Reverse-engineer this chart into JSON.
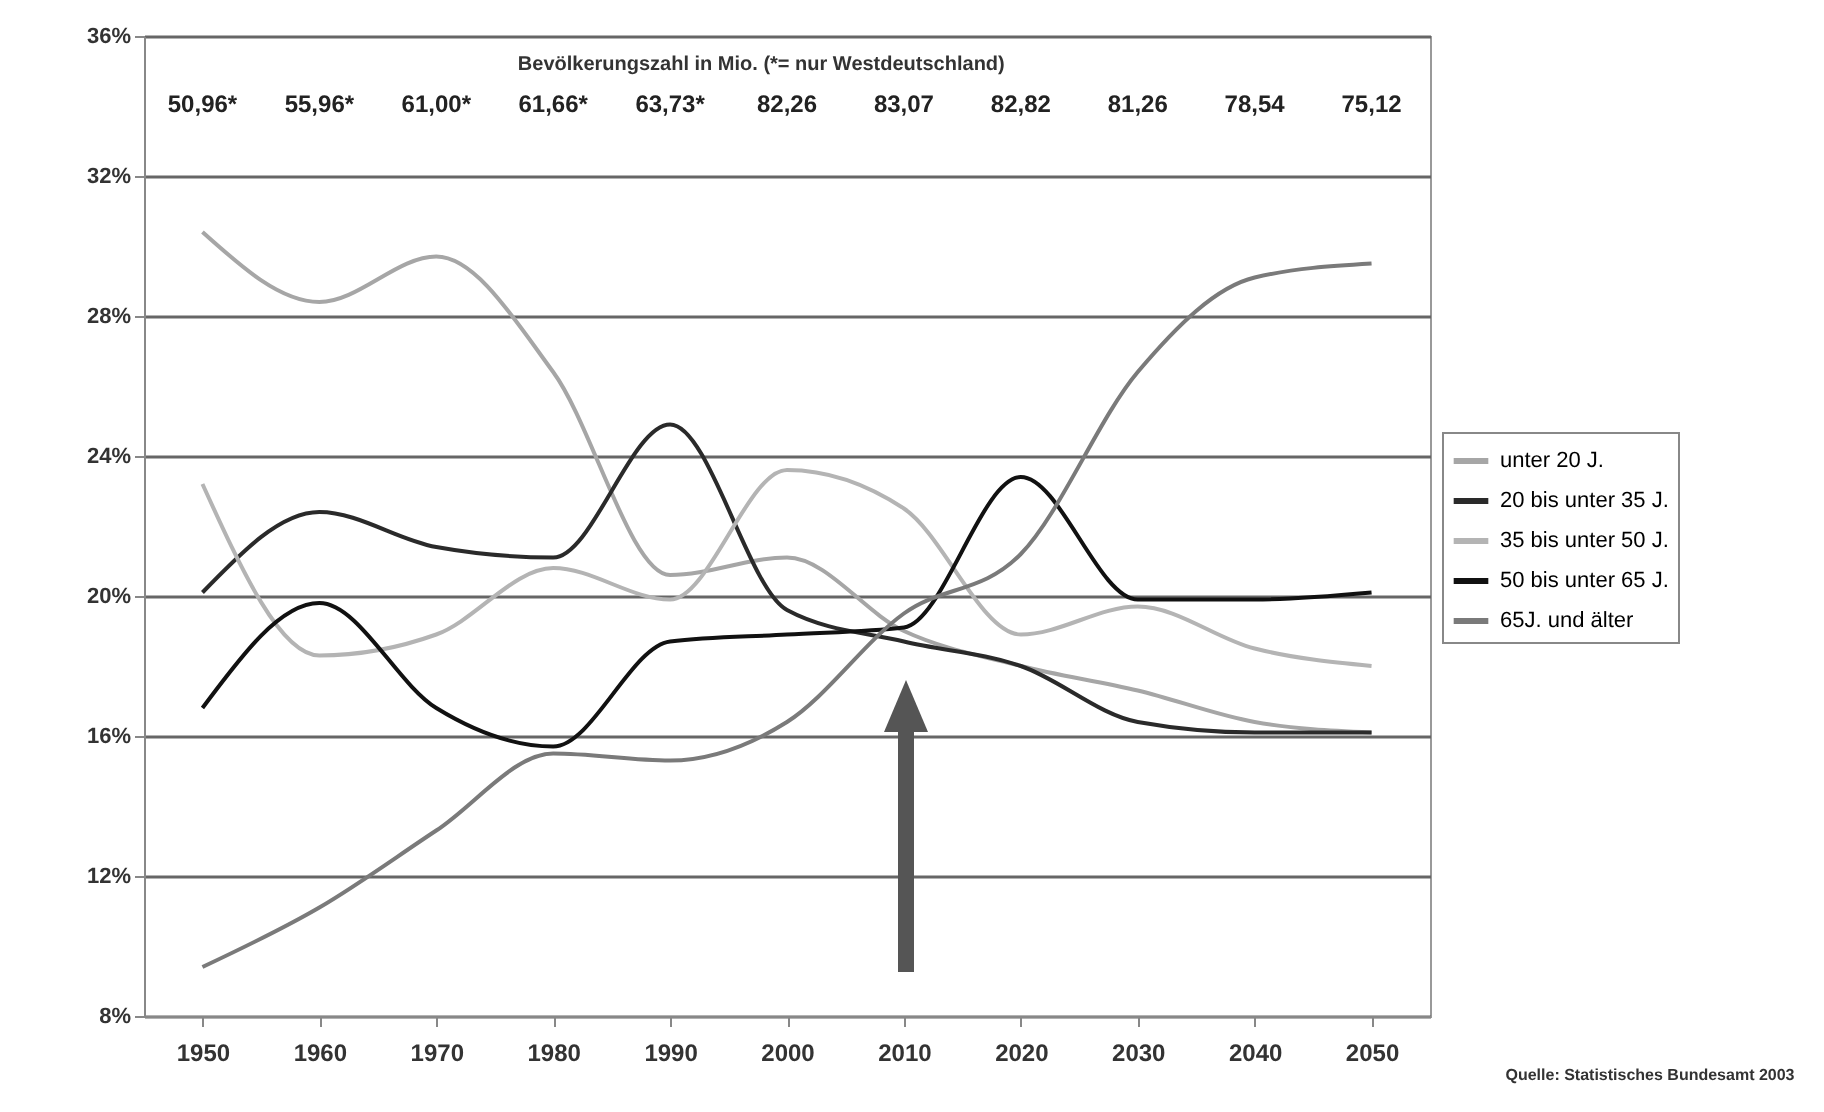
{
  "chart_data": {
    "type": "line",
    "title": "Bevölkerungszahl in Mio. (*= nur Westdeutschland)",
    "categories": [
      "1950",
      "1960",
      "1970",
      "1980",
      "1990",
      "2000",
      "2010",
      "2020",
      "2030",
      "2040",
      "2050"
    ],
    "series": [
      {
        "name": "unter 20 J.",
        "color": "#a6a6a6",
        "values": [
          30.4,
          28.4,
          29.7,
          26.4,
          20.6,
          21.1,
          19.0,
          18.0,
          17.3,
          16.4,
          16.1
        ]
      },
      {
        "name": "20 bis unter 35 J.",
        "color": "#2a2a2a",
        "values": [
          20.1,
          22.4,
          21.4,
          21.1,
          24.9,
          19.6,
          18.7,
          18.0,
          16.4,
          16.1,
          16.1
        ]
      },
      {
        "name": "35 bis unter 50 J.",
        "color": "#b4b4b4",
        "values": [
          23.2,
          18.3,
          18.9,
          20.8,
          19.9,
          23.6,
          22.5,
          18.9,
          19.7,
          18.5,
          18.0
        ]
      },
      {
        "name": "50 bis unter 65 J.",
        "color": "#111111",
        "values": [
          16.8,
          19.8,
          16.8,
          15.7,
          18.7,
          18.9,
          19.1,
          23.4,
          19.9,
          19.9,
          20.1
        ]
      },
      {
        "name": "65J. und älter",
        "color": "#7a7a7a",
        "values": [
          9.4,
          11.1,
          13.3,
          15.5,
          15.3,
          16.4,
          19.5,
          21.2,
          26.4,
          29.1,
          29.5
        ]
      }
    ],
    "ylim": [
      8,
      36
    ],
    "yticks": [
      {
        "value": 8,
        "label": "8%"
      },
      {
        "value": 12,
        "label": "12%"
      },
      {
        "value": 16,
        "label": "16%"
      },
      {
        "value": 20,
        "label": "20%"
      },
      {
        "value": 24,
        "label": "24%"
      },
      {
        "value": 28,
        "label": "28%"
      },
      {
        "value": 32,
        "label": "32%"
      },
      {
        "value": 36,
        "label": "36%"
      }
    ],
    "grid": "y",
    "legend": "right",
    "marker": "none",
    "line_style": "solid",
    "annotations": [
      "50,96*",
      "55,96*",
      "61,00*",
      "61,66*",
      "63,73*",
      "82,26",
      "83,07",
      "82,82",
      "81,26",
      "78,54",
      "75,12",
      "Quelle: Statistisches Bundesamt 2003"
    ]
  }
}
